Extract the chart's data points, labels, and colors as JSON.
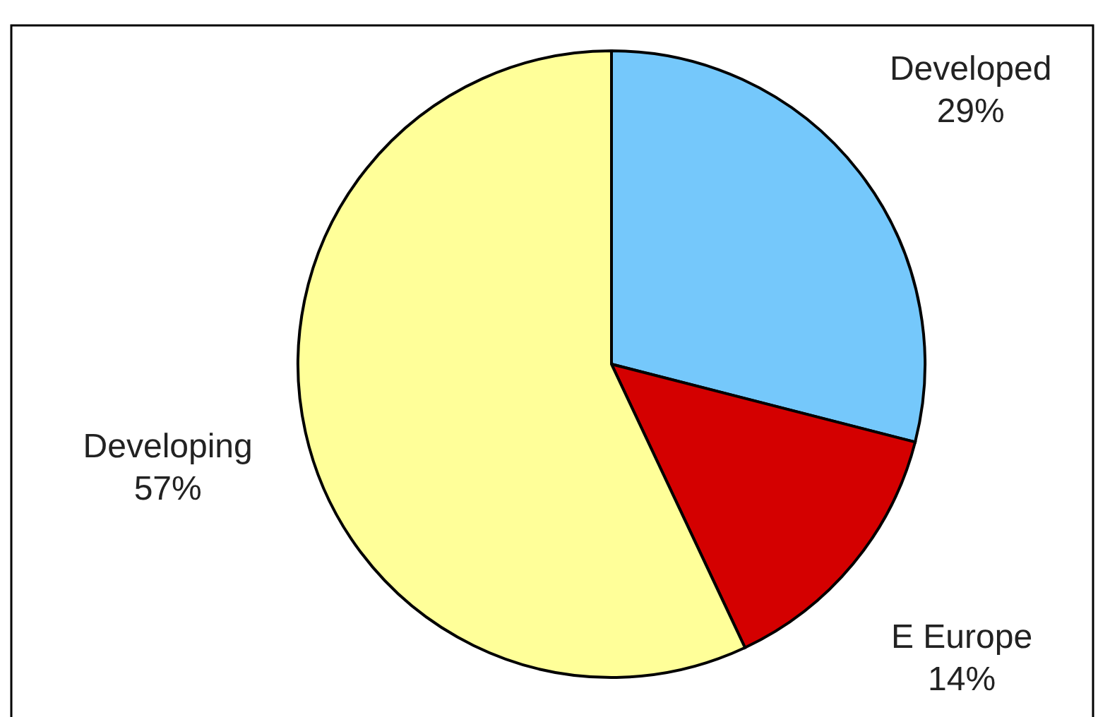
{
  "chart_data": {
    "type": "pie",
    "categories": [
      "Developed",
      "E Europe",
      "Developing"
    ],
    "values": [
      29,
      14,
      57
    ],
    "colors": [
      "#75c8fb",
      "#d40000",
      "#ffff99"
    ],
    "value_labels": [
      "29%",
      "14%",
      "57%"
    ]
  }
}
